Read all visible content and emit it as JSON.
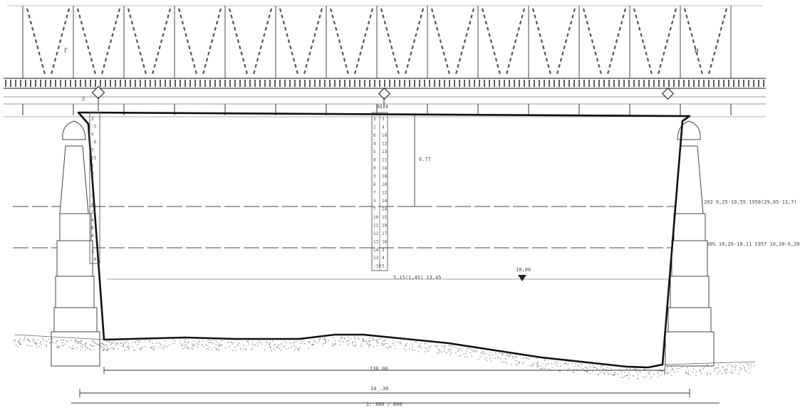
{
  "drawing": {
    "truss_labels": {
      "left": "Г",
      "right": "Н"
    },
    "bearing_marks": {
      "left": "2",
      "center": "9Q.4"
    },
    "dimensions": {
      "span_clear": "138.00",
      "span_bearings": "14_.30",
      "overall": "1: 380 / 800",
      "vertical_clearance": "6.77"
    },
    "water_levels": {
      "high_water": "203 9,25-19,55 1958(29,05-13,7)",
      "design_water": "80% 10,26-10,11 1957 10,20-6,20",
      "low_water": "5,15(1,45)  13,45"
    },
    "water_mark": "10,00",
    "gauge_left": [
      "3",
      "-3",
      "6",
      "-9",
      "5",
      "11",
      "1",
      "9",
      "3",
      "1",
      "5",
      "6",
      "11",
      "4",
      "8",
      "4",
      "1",
      "3",
      "-6"
    ],
    "gauge_center_left": [
      "3",
      "2",
      "6",
      "4",
      "5",
      "0",
      "0",
      "3",
      "6",
      "7",
      "5",
      "7",
      "10",
      "11",
      "12",
      "13",
      "14",
      "13",
      "-10"
    ],
    "gauge_center_right": [
      "3",
      "4",
      "10",
      "12",
      "13",
      "11",
      "14",
      "16",
      "10",
      "12",
      "14",
      "14",
      "15",
      "18",
      "17",
      "16",
      "3",
      "4",
      "5"
    ]
  }
}
